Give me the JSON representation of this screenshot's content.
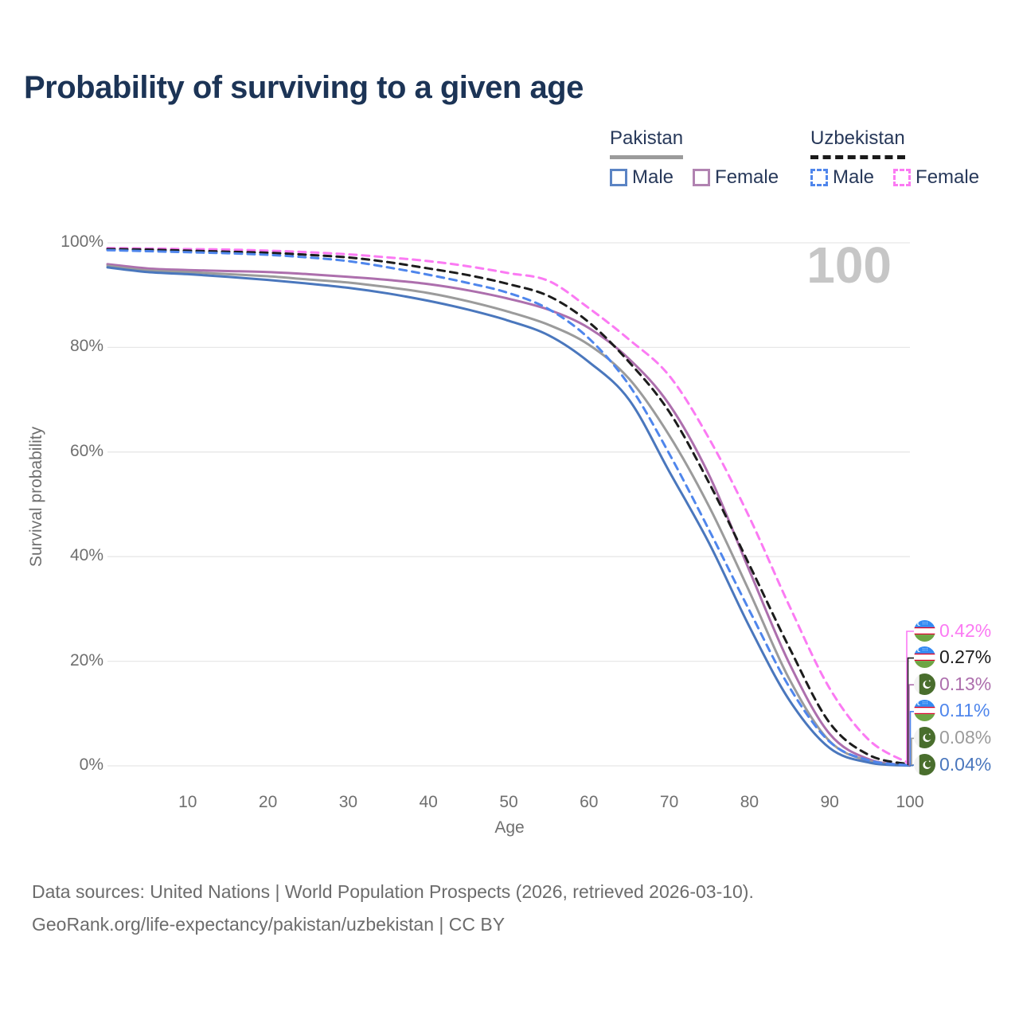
{
  "title": "Probability of surviving to a given age",
  "watermark": "100",
  "legend": {
    "groups": [
      {
        "name": "Pakistan",
        "line_style": "solid",
        "line_swatch_color": "#9b9b9b",
        "items": [
          {
            "label": "Male",
            "color": "#4a77bd",
            "style": "solid"
          },
          {
            "label": "Female",
            "color": "#ad6fad",
            "style": "solid"
          }
        ]
      },
      {
        "name": "Uzbekistan",
        "line_style": "dashed",
        "line_swatch_color": "#1a1a1a",
        "items": [
          {
            "label": "Male",
            "color": "#4f86ec",
            "style": "dashed"
          },
          {
            "label": "Female",
            "color": "#fb7af3",
            "style": "dashed"
          }
        ]
      }
    ]
  },
  "chart_data": {
    "type": "line",
    "title": "Probability of surviving to a given age",
    "xlabel": "Age",
    "ylabel": "Survival probability",
    "xlim": [
      0,
      100
    ],
    "ylim": [
      0,
      100
    ],
    "grid": "horizontal-only",
    "x_ticks": [
      10,
      20,
      30,
      40,
      50,
      60,
      70,
      80,
      90,
      100
    ],
    "y_ticks": [
      {
        "value": 0,
        "label": "0%"
      },
      {
        "value": 20,
        "label": "20%"
      },
      {
        "value": 40,
        "label": "40%"
      },
      {
        "value": 60,
        "label": "60%"
      },
      {
        "value": 80,
        "label": "80%"
      },
      {
        "value": 100,
        "label": "100%"
      }
    ],
    "ages": [
      0,
      5,
      10,
      15,
      20,
      25,
      30,
      35,
      40,
      45,
      50,
      55,
      60,
      65,
      70,
      75,
      80,
      85,
      90,
      95,
      100
    ],
    "series": [
      {
        "name": "Uzbekistan Female",
        "country": "Uzbekistan",
        "sex": "Female",
        "color": "#fb7af3",
        "dash": true,
        "flag_icon": "uzbekistan-flag-icon",
        "end_label": "0.42%",
        "values": [
          99.0,
          98.9,
          98.8,
          98.7,
          98.5,
          98.2,
          97.8,
          97.2,
          96.5,
          95.5,
          94.2,
          92.7,
          87.5,
          81.5,
          74.6,
          62.5,
          47.5,
          30.5,
          14.8,
          4.8,
          0.42
        ]
      },
      {
        "name": "Uzbekistan",
        "country": "Uzbekistan",
        "sex": "Both",
        "color": "#1c1c1c",
        "dash": true,
        "flag_icon": "uzbekistan-flag-icon",
        "end_label": "0.27%",
        "values": [
          98.8,
          98.7,
          98.5,
          98.3,
          98.1,
          97.7,
          97.2,
          96.3,
          95.1,
          93.8,
          92.1,
          89.8,
          84.8,
          77.2,
          67.7,
          54.0,
          38.4,
          22.5,
          8.2,
          2.0,
          0.27
        ]
      },
      {
        "name": "Pakistan Female",
        "country": "Pakistan",
        "sex": "Female",
        "color": "#ad6fad",
        "dash": false,
        "flag_icon": "pakistan-flag-icon",
        "end_label": "0.13%",
        "values": [
          95.9,
          95.1,
          94.8,
          94.6,
          94.4,
          94.0,
          93.5,
          92.9,
          92.1,
          90.9,
          89.3,
          87.2,
          83.7,
          77.8,
          69.1,
          55.5,
          37.3,
          19.5,
          6.1,
          1.2,
          0.13
        ]
      },
      {
        "name": "Uzbekistan Male",
        "country": "Uzbekistan",
        "sex": "Male",
        "color": "#4f86ec",
        "dash": true,
        "flag_icon": "uzbekistan-flag-icon",
        "end_label": "0.11%",
        "values": [
          98.6,
          98.4,
          98.2,
          98.0,
          97.7,
          97.2,
          96.5,
          95.3,
          93.9,
          92.3,
          90.4,
          87.3,
          81.7,
          72.8,
          59.7,
          45.0,
          29.7,
          15.0,
          4.6,
          1.0,
          0.11
        ]
      },
      {
        "name": "Pakistan",
        "country": "Pakistan",
        "sex": "Both",
        "color": "#9b9b9b",
        "dash": false,
        "flag_icon": "pakistan-flag-icon",
        "end_label": "0.08%",
        "values": [
          95.6,
          94.7,
          94.4,
          94.0,
          93.6,
          93.0,
          92.4,
          91.5,
          90.4,
          88.8,
          86.8,
          84.3,
          80.5,
          74.0,
          63.2,
          49.5,
          33.3,
          16.5,
          4.7,
          0.9,
          0.08
        ]
      },
      {
        "name": "Pakistan Male",
        "country": "Pakistan",
        "sex": "Male",
        "color": "#4a77bd",
        "dash": false,
        "flag_icon": "pakistan-flag-icon",
        "end_label": "0.04%",
        "values": [
          95.3,
          94.4,
          94.0,
          93.5,
          92.9,
          92.2,
          91.4,
          90.3,
          88.9,
          87.2,
          85.1,
          82.3,
          77.2,
          70.0,
          56.3,
          42.5,
          26.6,
          12.5,
          3.4,
          0.6,
          0.04
        ]
      }
    ]
  },
  "footer": {
    "line1": "Data sources: United Nations | World Population Prospects (2026, retrieved 2026-03-10).",
    "line2": "GeoRank.org/life-expectancy/pakistan/uzbekistan | CC BY"
  }
}
